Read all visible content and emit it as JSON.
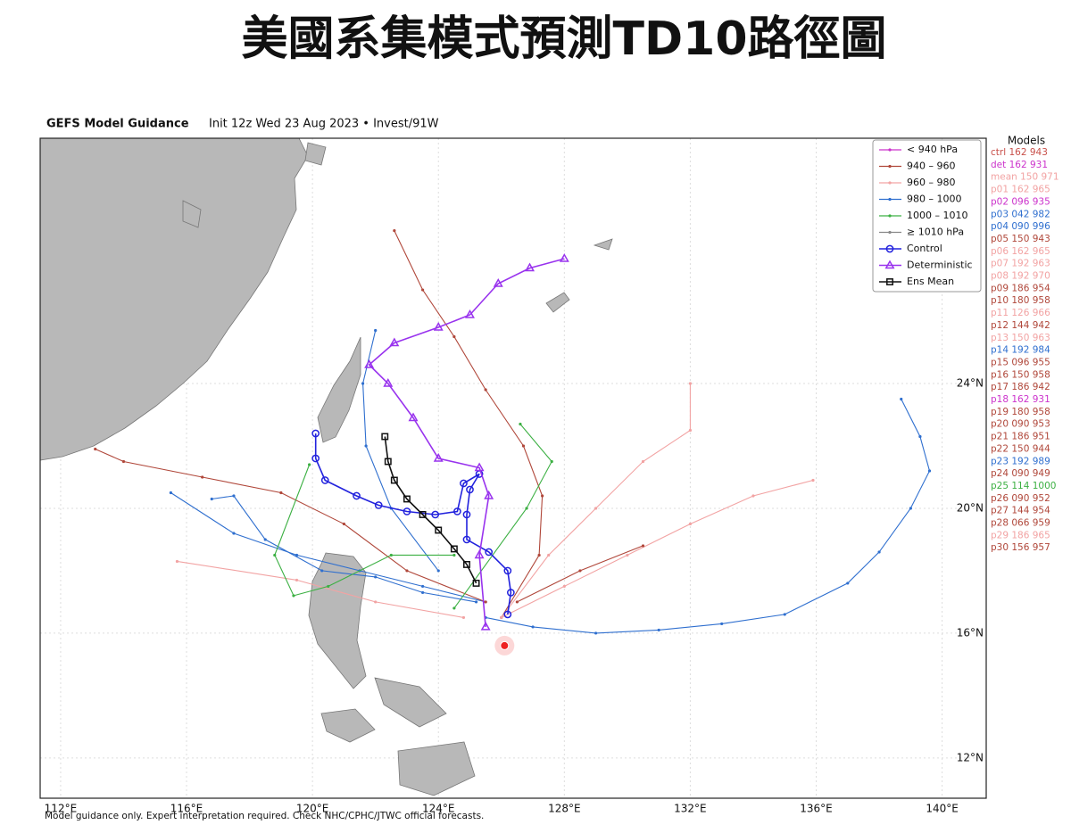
{
  "header": {
    "title": "美國系集模式預測TD10路徑圖"
  },
  "chart_data": {
    "type": "track-map",
    "title": "GEFS Model Guidance",
    "subtitle": "Init 12z Wed 23 Aug 2023 • Invest/91W",
    "footnote": "Model guidance only. Expert interpretation required. Check NHC/CPHC/JTWC official forecasts.",
    "xlim": [
      111.35,
      141.4
    ],
    "ylim": [
      10.71,
      31.86
    ],
    "xticks": [
      {
        "value": 112,
        "label": "112°E"
      },
      {
        "value": 116,
        "label": "116°E"
      },
      {
        "value": 120,
        "label": "120°E"
      },
      {
        "value": 124,
        "label": "124°E"
      },
      {
        "value": 128,
        "label": "128°E"
      },
      {
        "value": 132,
        "label": "132°E"
      },
      {
        "value": 136,
        "label": "136°E"
      },
      {
        "value": 140,
        "label": "140°E"
      }
    ],
    "yticks": [
      {
        "value": 12,
        "label": "12°N"
      },
      {
        "value": 16,
        "label": "16°N"
      },
      {
        "value": 20,
        "label": "20°N"
      },
      {
        "value": 24,
        "label": "24°N"
      }
    ],
    "grid": true,
    "legend": "upper right",
    "pressure_legend": [
      {
        "label": "< 940 hPa",
        "color": "#cc33cc"
      },
      {
        "label": "940 – 960",
        "color": "#b0473a"
      },
      {
        "label": "960 – 980",
        "color": "#f2a3a3"
      },
      {
        "label": "980 – 1000",
        "color": "#2f6fcf"
      },
      {
        "label": "1000 – 1010",
        "color": "#3cb043"
      },
      {
        "label": "≥ 1010 hPa",
        "color": "#888888"
      }
    ],
    "tracks": [
      {
        "name": "Control",
        "color": "#2222dd",
        "marker": "circle",
        "lon": [
          126.2,
          126.3,
          126.2,
          125.6,
          124.9,
          124.9,
          125.0,
          125.3,
          124.8,
          124.6,
          123.9,
          123.0,
          122.1,
          121.4,
          120.4,
          120.1,
          120.1
        ],
        "lat": [
          16.6,
          17.3,
          18.0,
          18.6,
          19.0,
          19.8,
          20.6,
          21.1,
          20.8,
          19.9,
          19.8,
          19.9,
          20.1,
          20.4,
          20.9,
          21.6,
          22.4
        ]
      },
      {
        "name": "Deterministic",
        "color": "#9933ee",
        "marker": "triangle",
        "lon": [
          125.5,
          125.3,
          125.6,
          125.3,
          124.0,
          123.2,
          122.4,
          121.8,
          122.6,
          124.0,
          125.0,
          125.9,
          126.9,
          128.0
        ],
        "lat": [
          16.2,
          18.5,
          20.4,
          21.3,
          21.6,
          22.9,
          24.0,
          24.6,
          25.3,
          25.8,
          26.2,
          27.2,
          27.7,
          28.0
        ]
      },
      {
        "name": "Ens Mean",
        "color": "#111111",
        "marker": "square",
        "lon": [
          125.2,
          124.9,
          124.5,
          124.0,
          123.5,
          123.0,
          122.6,
          122.4,
          122.3
        ],
        "lat": [
          17.6,
          18.2,
          18.7,
          19.3,
          19.8,
          20.3,
          20.9,
          21.5,
          22.3
        ]
      }
    ],
    "ensemble_tracks": [
      {
        "color": "#2f6fcf",
        "lon": [
          125.5,
          127.0,
          129.0,
          131.0,
          133.0,
          135.0,
          137.0,
          138.0,
          139.0,
          139.6,
          139.3,
          138.7
        ],
        "lat": [
          16.5,
          16.2,
          16.0,
          16.1,
          16.3,
          16.6,
          17.6,
          18.6,
          20.0,
          21.2,
          22.3,
          23.5
        ]
      },
      {
        "color": "#b0473a",
        "lon": [
          126.0,
          127.2,
          127.3,
          126.7,
          125.5,
          124.5,
          123.5,
          122.6
        ],
        "lat": [
          16.5,
          18.5,
          20.4,
          22.0,
          23.8,
          25.5,
          27.0,
          28.9
        ]
      },
      {
        "color": "#f2a3a3",
        "lon": [
          126.0,
          128.0,
          130.0,
          132.0,
          134.0,
          135.9
        ],
        "lat": [
          16.5,
          17.5,
          18.5,
          19.5,
          20.4,
          20.9
        ]
      },
      {
        "color": "#f2a3a3",
        "lon": [
          126.0,
          127.5,
          129.0,
          130.5,
          132.0,
          132.0
        ],
        "lat": [
          16.5,
          18.5,
          20.0,
          21.5,
          22.5,
          24.0
        ]
      },
      {
        "color": "#2f6fcf",
        "lon": [
          125.5,
          123.5,
          121.5,
          119.5,
          117.5,
          115.5
        ],
        "lat": [
          17.0,
          17.5,
          18.0,
          18.5,
          19.2,
          20.5
        ]
      },
      {
        "color": "#b0473a",
        "lon": [
          125.5,
          123.0,
          121.0,
          119.0,
          116.5,
          114.0,
          113.1
        ],
        "lat": [
          17.0,
          18.0,
          19.5,
          20.5,
          21.0,
          21.5,
          21.9
        ]
      },
      {
        "color": "#3cb043",
        "lon": [
          124.5,
          126.8,
          127.6,
          126.6
        ],
        "lat": [
          16.8,
          20.0,
          21.5,
          22.7
        ]
      },
      {
        "color": "#2f6fcf",
        "lon": [
          125.2,
          123.5,
          122.0,
          120.3,
          118.5,
          117.5,
          116.8
        ],
        "lat": [
          17.0,
          17.3,
          17.8,
          18.0,
          19.0,
          20.4,
          20.3
        ]
      },
      {
        "color": "#f2a3a3",
        "lon": [
          124.8,
          122.0,
          119.5,
          115.7
        ],
        "lat": [
          16.5,
          17.0,
          17.7,
          18.3
        ]
      },
      {
        "color": "#2f6fcf",
        "lon": [
          124.0,
          122.5,
          121.7,
          121.6,
          122.0
        ],
        "lat": [
          18.0,
          20.0,
          22.0,
          24.0,
          25.7
        ]
      },
      {
        "color": "#3cb043",
        "lon": [
          124.5,
          122.5,
          120.5,
          119.4,
          118.8,
          119.9
        ],
        "lat": [
          18.5,
          18.5,
          17.5,
          17.2,
          18.5,
          21.4
        ]
      },
      {
        "color": "#b0473a",
        "lon": [
          126.5,
          128.5,
          130.5
        ],
        "lat": [
          17.0,
          18.0,
          18.8
        ]
      }
    ],
    "storm": {
      "lon": 126.1,
      "lat": 15.6,
      "color": "#ee2222"
    },
    "models_title": "Models",
    "models": [
      {
        "label": "ctrl 162 943",
        "color": "#c8504a"
      },
      {
        "label": "det 162 931",
        "color": "#cc33cc"
      },
      {
        "label": "mean 150 971",
        "color": "#f2a3a3"
      },
      {
        "label": "p01 162 965",
        "color": "#f2a3a3"
      },
      {
        "label": "p02 096 935",
        "color": "#cc33cc"
      },
      {
        "label": "p03 042 982",
        "color": "#2f6fcf"
      },
      {
        "label": "p04 090 996",
        "color": "#2f6fcf"
      },
      {
        "label": "p05 150 943",
        "color": "#b0473a"
      },
      {
        "label": "p06 162 965",
        "color": "#f2a3a3"
      },
      {
        "label": "p07 192 963",
        "color": "#f2a3a3"
      },
      {
        "label": "p08 192 970",
        "color": "#f2a3a3"
      },
      {
        "label": "p09 186 954",
        "color": "#b0473a"
      },
      {
        "label": "p10 180 958",
        "color": "#b0473a"
      },
      {
        "label": "p11 126 966",
        "color": "#f2a3a3"
      },
      {
        "label": "p12 144 942",
        "color": "#b0473a"
      },
      {
        "label": "p13 150 963",
        "color": "#f2a3a3"
      },
      {
        "label": "p14 192 984",
        "color": "#2f6fcf"
      },
      {
        "label": "p15 096 955",
        "color": "#b0473a"
      },
      {
        "label": "p16 150 958",
        "color": "#b0473a"
      },
      {
        "label": "p17 186 942",
        "color": "#b0473a"
      },
      {
        "label": "p18 162 931",
        "color": "#cc33cc"
      },
      {
        "label": "p19 180 958",
        "color": "#b0473a"
      },
      {
        "label": "p20 090 953",
        "color": "#b0473a"
      },
      {
        "label": "p21 186 951",
        "color": "#b0473a"
      },
      {
        "label": "p22 150 944",
        "color": "#b0473a"
      },
      {
        "label": "p23 192 989",
        "color": "#2f6fcf"
      },
      {
        "label": "p24 090 949",
        "color": "#b0473a"
      },
      {
        "label": "p25 114 1000",
        "color": "#3cb043"
      },
      {
        "label": "p26 090 952",
        "color": "#b0473a"
      },
      {
        "label": "p27 144 954",
        "color": "#b0473a"
      },
      {
        "label": "p28 066 959",
        "color": "#b0473a"
      },
      {
        "label": "p29 186 965",
        "color": "#f2a3a3"
      },
      {
        "label": "p30 156 957",
        "color": "#b0473a"
      }
    ]
  }
}
